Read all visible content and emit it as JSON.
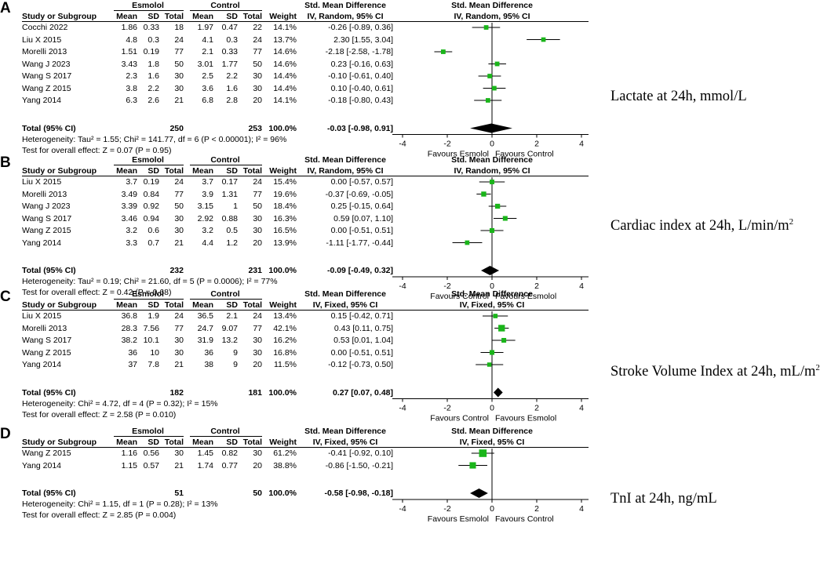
{
  "colors": {
    "marker": "#1ab51a",
    "text": "#000000"
  },
  "panels": [
    {
      "letter": "A",
      "outcome": {
        "main": "Lactate at 24h, mmol/L",
        "sup": ""
      },
      "headers": {
        "g1": "Esmolol",
        "g2": "Control",
        "study": "Study or Subgroup",
        "mean": "Mean",
        "sd": "SD",
        "total": "Total",
        "weight": "Weight",
        "smd_title": "Std. Mean Difference",
        "smd_sub": "IV, Random, 95% CI"
      },
      "rows": [
        {
          "study": "Cocchi 2022",
          "m1": "1.86",
          "sd1": "0.33",
          "n1": "18",
          "m2": "1.97",
          "sd2": "0.47",
          "n2": "22",
          "weight": "14.1%",
          "ci": "-0.26 [-0.89, 0.36]"
        },
        {
          "study": "Liu X 2015",
          "m1": "4.8",
          "sd1": "0.3",
          "n1": "24",
          "m2": "4.1",
          "sd2": "0.3",
          "n2": "24",
          "weight": "13.7%",
          "ci": "2.30 [1.55, 3.04]"
        },
        {
          "study": "Morelli 2013",
          "m1": "1.51",
          "sd1": "0.19",
          "n1": "77",
          "m2": "2.1",
          "sd2": "0.33",
          "n2": "77",
          "weight": "14.6%",
          "ci": "-2.18 [-2.58, -1.78]"
        },
        {
          "study": "Wang J 2023",
          "m1": "3.43",
          "sd1": "1.8",
          "n1": "50",
          "m2": "3.01",
          "sd2": "1.77",
          "n2": "50",
          "weight": "14.6%",
          "ci": "0.23 [-0.16, 0.63]"
        },
        {
          "study": "Wang S 2017",
          "m1": "2.3",
          "sd1": "1.6",
          "n1": "30",
          "m2": "2.5",
          "sd2": "2.2",
          "n2": "30",
          "weight": "14.4%",
          "ci": "-0.10 [-0.61, 0.40]"
        },
        {
          "study": "Wang Z 2015",
          "m1": "3.8",
          "sd1": "2.2",
          "n1": "30",
          "m2": "3.6",
          "sd2": "1.6",
          "n2": "30",
          "weight": "14.4%",
          "ci": "0.10 [-0.40, 0.61]"
        },
        {
          "study": "Yang 2014",
          "m1": "6.3",
          "sd1": "2.6",
          "n1": "21",
          "m2": "6.8",
          "sd2": "2.8",
          "n2": "20",
          "weight": "14.1%",
          "ci": "-0.18 [-0.80, 0.43]"
        }
      ],
      "total": {
        "label": "Total (95% CI)",
        "n1": "250",
        "n2": "253",
        "weight": "100.0%",
        "ci": "-0.03 [-0.98, 0.91]"
      },
      "heterogeneity": "Heterogeneity: Tau² = 1.55; Chi² = 141.77, df = 6 (P < 0.00001); I² = 96%",
      "overall": "Test for overall effect: Z = 0.07 (P = 0.95)",
      "favours": {
        "left": "Favours Esmolol",
        "right": "Favours Control"
      }
    },
    {
      "letter": "B",
      "outcome": {
        "main": "Cardiac index at 24h, L/min/m",
        "sup": "2"
      },
      "headers": {
        "g1": "Esmolol",
        "g2": "Control",
        "study": "Study or Subgroup",
        "mean": "Mean",
        "sd": "SD",
        "total": "Total",
        "weight": "Weight",
        "smd_title": "Std. Mean Difference",
        "smd_sub": "IV, Random, 95% CI"
      },
      "rows": [
        {
          "study": "Liu X 2015",
          "m1": "3.7",
          "sd1": "0.19",
          "n1": "24",
          "m2": "3.7",
          "sd2": "0.17",
          "n2": "24",
          "weight": "15.4%",
          "ci": "0.00 [-0.57, 0.57]"
        },
        {
          "study": "Morelli 2013",
          "m1": "3.49",
          "sd1": "0.84",
          "n1": "77",
          "m2": "3.9",
          "sd2": "1.31",
          "n2": "77",
          "weight": "19.6%",
          "ci": "-0.37 [-0.69, -0.05]"
        },
        {
          "study": "Wang J 2023",
          "m1": "3.39",
          "sd1": "0.92",
          "n1": "50",
          "m2": "3.15",
          "sd2": "1",
          "n2": "50",
          "weight": "18.4%",
          "ci": "0.25 [-0.15, 0.64]"
        },
        {
          "study": "Wang S 2017",
          "m1": "3.46",
          "sd1": "0.94",
          "n1": "30",
          "m2": "2.92",
          "sd2": "0.88",
          "n2": "30",
          "weight": "16.3%",
          "ci": "0.59 [0.07, 1.10]"
        },
        {
          "study": "Wang Z 2015",
          "m1": "3.2",
          "sd1": "0.6",
          "n1": "30",
          "m2": "3.2",
          "sd2": "0.5",
          "n2": "30",
          "weight": "16.5%",
          "ci": "0.00 [-0.51, 0.51]"
        },
        {
          "study": "Yang 2014",
          "m1": "3.3",
          "sd1": "0.7",
          "n1": "21",
          "m2": "4.4",
          "sd2": "1.2",
          "n2": "20",
          "weight": "13.9%",
          "ci": "-1.11 [-1.77, -0.44]"
        }
      ],
      "total": {
        "label": "Total (95% CI)",
        "n1": "232",
        "n2": "231",
        "weight": "100.0%",
        "ci": "-0.09 [-0.49, 0.32]"
      },
      "heterogeneity": "Heterogeneity: Tau² = 0.19; Chi² = 21.60, df = 5 (P = 0.0006); I² = 77%",
      "overall": "Test for overall effect: Z = 0.42 (P = 0.68)",
      "favours": {
        "left": "Favours Control",
        "right": "Favours Esmolol"
      }
    },
    {
      "letter": "C",
      "outcome": {
        "main": "Stroke Volume Index at 24h, mL/m",
        "sup": "2"
      },
      "headers": {
        "g1": "Esmolol",
        "g2": "Control",
        "study": "Study or Subgroup",
        "mean": "Mean",
        "sd": "SD",
        "total": "Total",
        "weight": "Weight",
        "smd_title": "Std. Mean Difference",
        "smd_sub": "IV, Fixed, 95% CI"
      },
      "rows": [
        {
          "study": "Liu X 2015",
          "m1": "36.8",
          "sd1": "1.9",
          "n1": "24",
          "m2": "36.5",
          "sd2": "2.1",
          "n2": "24",
          "weight": "13.4%",
          "ci": "0.15 [-0.42, 0.71]"
        },
        {
          "study": "Morelli 2013",
          "m1": "28.3",
          "sd1": "7.56",
          "n1": "77",
          "m2": "24.7",
          "sd2": "9.07",
          "n2": "77",
          "weight": "42.1%",
          "ci": "0.43 [0.11, 0.75]"
        },
        {
          "study": "Wang S 2017",
          "m1": "38.2",
          "sd1": "10.1",
          "n1": "30",
          "m2": "31.9",
          "sd2": "13.2",
          "n2": "30",
          "weight": "16.2%",
          "ci": "0.53 [0.01, 1.04]"
        },
        {
          "study": "Wang Z 2015",
          "m1": "36",
          "sd1": "10",
          "n1": "30",
          "m2": "36",
          "sd2": "9",
          "n2": "30",
          "weight": "16.8%",
          "ci": "0.00 [-0.51, 0.51]"
        },
        {
          "study": "Yang 2014",
          "m1": "37",
          "sd1": "7.8",
          "n1": "21",
          "m2": "38",
          "sd2": "9",
          "n2": "20",
          "weight": "11.5%",
          "ci": "-0.12 [-0.73, 0.50]"
        }
      ],
      "total": {
        "label": "Total (95% CI)",
        "n1": "182",
        "n2": "181",
        "weight": "100.0%",
        "ci": "0.27 [0.07, 0.48]"
      },
      "heterogeneity": "Heterogeneity: Chi² = 4.72, df = 4 (P = 0.32); I² = 15%",
      "overall": "Test for overall effect: Z = 2.58 (P = 0.010)",
      "favours": {
        "left": "Favours Control",
        "right": "Favours Esmolol"
      }
    },
    {
      "letter": "D",
      "outcome": {
        "main": "TnI at 24h, ng/mL",
        "sup": ""
      },
      "headers": {
        "g1": "Esmolol",
        "g2": "Control",
        "study": "Study or Subgroup",
        "mean": "Mean",
        "sd": "SD",
        "total": "Total",
        "weight": "Weight",
        "smd_title": "Std. Mean Difference",
        "smd_sub": "IV, Fixed, 95% CI"
      },
      "rows": [
        {
          "study": "Wang Z 2015",
          "m1": "1.16",
          "sd1": "0.56",
          "n1": "30",
          "m2": "1.45",
          "sd2": "0.82",
          "n2": "30",
          "weight": "61.2%",
          "ci": "-0.41 [-0.92, 0.10]"
        },
        {
          "study": "Yang 2014",
          "m1": "1.15",
          "sd1": "0.57",
          "n1": "21",
          "m2": "1.74",
          "sd2": "0.77",
          "n2": "20",
          "weight": "38.8%",
          "ci": "-0.86 [-1.50, -0.21]"
        }
      ],
      "total": {
        "label": "Total (95% CI)",
        "n1": "51",
        "n2": "50",
        "weight": "100.0%",
        "ci": "-0.58 [-0.98, -0.18]"
      },
      "heterogeneity": "Heterogeneity: Chi² = 1.15, df = 1 (P = 0.28); I² = 13%",
      "overall": "Test for overall effect: Z = 2.85 (P = 0.004)",
      "favours": {
        "left": "Favours Esmolol",
        "right": "Favours Control"
      }
    }
  ],
  "chart_data": [
    {
      "type": "forest",
      "title": "Lactate at 24h, mmol/L",
      "xlim": [
        -4,
        4
      ],
      "ticks": [
        "-4",
        "-2",
        "0",
        "2",
        "4"
      ],
      "xlabel_left": "Favours Esmolol",
      "xlabel_right": "Favours Control",
      "studies": [
        "Cocchi 2022",
        "Liu X 2015",
        "Morelli 2013",
        "Wang J 2023",
        "Wang S 2017",
        "Wang Z 2015",
        "Yang 2014"
      ],
      "est": [
        -0.26,
        2.3,
        -2.18,
        0.23,
        -0.1,
        0.1,
        -0.18
      ],
      "lo": [
        -0.89,
        1.55,
        -2.58,
        -0.16,
        -0.61,
        -0.4,
        -0.8
      ],
      "hi": [
        0.36,
        3.04,
        -1.78,
        0.63,
        0.4,
        0.61,
        0.43
      ],
      "weights": [
        14.1,
        13.7,
        14.6,
        14.6,
        14.4,
        14.4,
        14.1
      ],
      "pooled": {
        "est": -0.03,
        "lo": -0.98,
        "hi": 0.91
      }
    },
    {
      "type": "forest",
      "title": "Cardiac index at 24h, L/min/m2",
      "xlim": [
        -4,
        4
      ],
      "ticks": [
        "-4",
        "-2",
        "0",
        "2",
        "4"
      ],
      "xlabel_left": "Favours Control",
      "xlabel_right": "Favours Esmolol",
      "studies": [
        "Liu X 2015",
        "Morelli 2013",
        "Wang J 2023",
        "Wang S 2017",
        "Wang Z 2015",
        "Yang 2014"
      ],
      "est": [
        0.0,
        -0.37,
        0.25,
        0.59,
        0.0,
        -1.11
      ],
      "lo": [
        -0.57,
        -0.69,
        -0.15,
        0.07,
        -0.51,
        -1.77
      ],
      "hi": [
        0.57,
        -0.05,
        0.64,
        1.1,
        0.51,
        -0.44
      ],
      "weights": [
        15.4,
        19.6,
        18.4,
        16.3,
        16.5,
        13.9
      ],
      "pooled": {
        "est": -0.09,
        "lo": -0.49,
        "hi": 0.32
      }
    },
    {
      "type": "forest",
      "title": "Stroke Volume Index at 24h, mL/m2",
      "xlim": [
        -4,
        4
      ],
      "ticks": [
        "-4",
        "-2",
        "0",
        "2",
        "4"
      ],
      "xlabel_left": "Favours Control",
      "xlabel_right": "Favours Esmolol",
      "studies": [
        "Liu X 2015",
        "Morelli 2013",
        "Wang S 2017",
        "Wang Z 2015",
        "Yang 2014"
      ],
      "est": [
        0.15,
        0.43,
        0.53,
        0.0,
        -0.12
      ],
      "lo": [
        -0.42,
        0.11,
        0.01,
        -0.51,
        -0.73
      ],
      "hi": [
        0.71,
        0.75,
        1.04,
        0.51,
        0.5
      ],
      "weights": [
        13.4,
        42.1,
        16.2,
        16.8,
        11.5
      ],
      "pooled": {
        "est": 0.27,
        "lo": 0.07,
        "hi": 0.48
      }
    },
    {
      "type": "forest",
      "title": "TnI at 24h, ng/mL",
      "xlim": [
        -4,
        4
      ],
      "ticks": [
        "-4",
        "-2",
        "0",
        "2",
        "4"
      ],
      "xlabel_left": "Favours Esmolol",
      "xlabel_right": "Favours Control",
      "studies": [
        "Wang Z 2015",
        "Yang 2014"
      ],
      "est": [
        -0.41,
        -0.86
      ],
      "lo": [
        -0.92,
        -1.5
      ],
      "hi": [
        0.1,
        -0.21
      ],
      "weights": [
        61.2,
        38.8
      ],
      "pooled": {
        "est": -0.58,
        "lo": -0.98,
        "hi": -0.18
      }
    }
  ]
}
